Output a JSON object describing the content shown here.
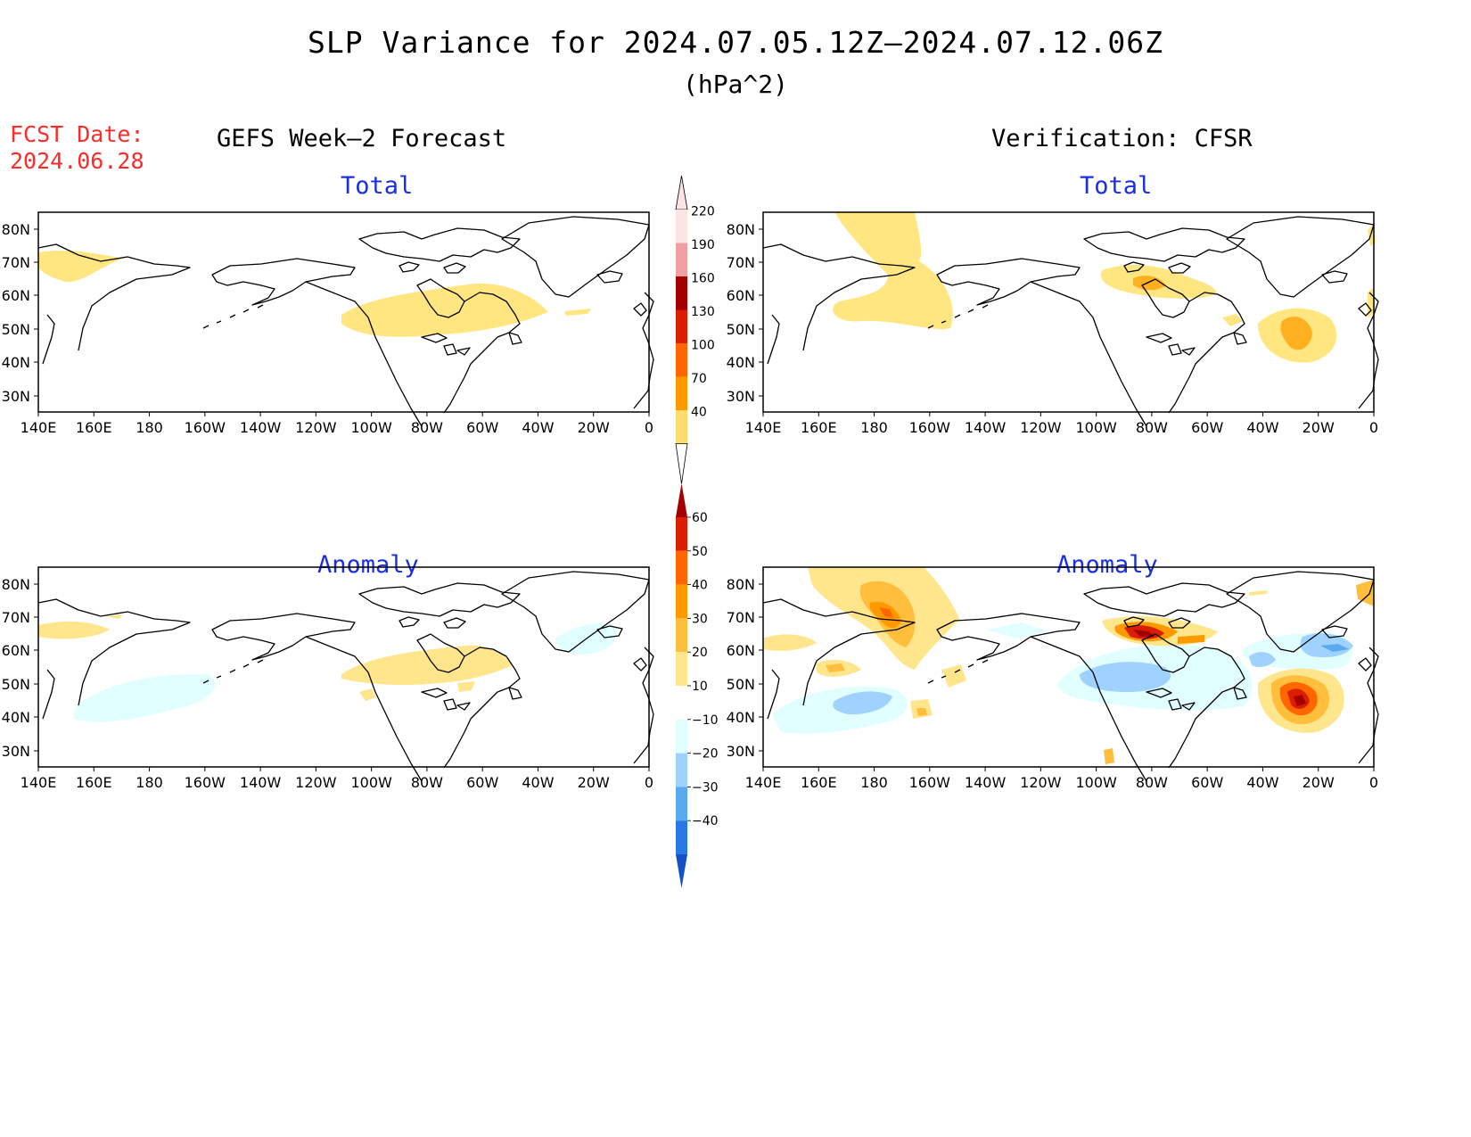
{
  "title": "SLP Variance for 2024.07.05.12Z–2024.07.12.06Z",
  "units": "(hPa^2)",
  "fcst_label": "FCST Date:",
  "fcst_date": "2024.06.28",
  "left_column_title": "GEFS Week–2 Forecast",
  "right_column_title": "Verification: CFSR",
  "panels": {
    "fcst_total": {
      "title": "Total"
    },
    "verif_total": {
      "title": "Total"
    },
    "fcst_anom": {
      "title": "Anomaly"
    },
    "verif_anom": {
      "title": "Anomaly"
    }
  },
  "lat_labels": [
    "80N",
    "70N",
    "60N",
    "50N",
    "40N",
    "30N"
  ],
  "lon_labels": [
    "140E",
    "160E",
    "180",
    "160W",
    "140W",
    "120W",
    "100W",
    "80W",
    "60W",
    "40W",
    "20W",
    "0"
  ],
  "colorbars": {
    "total": {
      "labels": [
        "220",
        "190",
        "160",
        "130",
        "100",
        "70",
        "40"
      ],
      "colors": [
        "#fbe4e4",
        "#f0a0a0",
        "#a50000",
        "#dc1e00",
        "#ff6600",
        "#ff9900",
        "#ffdc6e"
      ]
    },
    "anomaly": {
      "labels": [
        "60",
        "50",
        "40",
        "30",
        "20",
        "10",
        "−10",
        "−20",
        "−30",
        "−40"
      ],
      "colors": [
        "#a50000",
        "#dc1e00",
        "#ff6600",
        "#ff9900",
        "#ffbe3c",
        "#ffe68c",
        "#ffffff",
        "#e1ffff",
        "#a0d2ff",
        "#5aaaf0",
        "#2878e6",
        "#1450c8"
      ]
    }
  },
  "chart_data": {
    "type": "heatmap",
    "variable": "SLP Variance",
    "units": "hPa^2",
    "lat_range": [
      "25N",
      "85N"
    ],
    "lon_range": [
      "140E",
      "0"
    ],
    "panels": [
      {
        "name": "GEFS Week-2 Forecast Total",
        "features": [
          {
            "region": "Hudson Bay / central Canada",
            "level": "40-70"
          },
          {
            "region": "Kamchatka / western Bering",
            "level": "40-70"
          }
        ]
      },
      {
        "name": "Verification CFSR Total",
        "features": [
          {
            "region": "Bering Sea / Alaska",
            "level": "40-70"
          },
          {
            "region": "Hudson Bay",
            "level": "70-100"
          },
          {
            "region": "central North Atlantic",
            "level": "70-100"
          }
        ]
      },
      {
        "name": "GEFS Week-2 Forecast Anomaly",
        "features": [
          {
            "region": "Hudson Bay / Great Lakes",
            "level": "10-20"
          },
          {
            "region": "central North Pacific",
            "level": "-10 to -20"
          },
          {
            "region": "Greenland / Iceland",
            "level": "-10 to -20"
          }
        ]
      },
      {
        "name": "Verification CFSR Anomaly",
        "features": [
          {
            "region": "Hudson Bay",
            "level": ">60"
          },
          {
            "region": "central North Atlantic",
            "level": ">60"
          },
          {
            "region": "Bering Strait / Alaska",
            "level": "40-50"
          },
          {
            "region": "North Pacific 45N",
            "level": "-20 to -30"
          },
          {
            "region": "northern US / Great Lakes",
            "level": "-20 to -30"
          },
          {
            "region": "south of Greenland",
            "level": "-30 to -40"
          }
        ]
      }
    ]
  }
}
